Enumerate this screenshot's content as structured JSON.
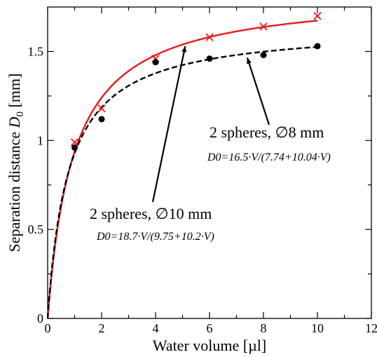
{
  "chart_data": {
    "type": "scatter",
    "title": "",
    "xlabel": "Water volume [µl]",
    "ylabel_main": "Separation distance ",
    "ylabel_sym": "D",
    "ylabel_sub": "0",
    "ylabel_unit": " [mm]",
    "xlim": [
      0,
      12
    ],
    "ylim": [
      0,
      1.75
    ],
    "xticks": [
      0,
      2,
      4,
      6,
      8,
      10,
      12
    ],
    "yticks": [
      0,
      0.5,
      1,
      1.5
    ],
    "xtick_labels": [
      "0",
      "2",
      "4",
      "6",
      "8",
      "10",
      "12"
    ],
    "ytick_labels": [
      "0",
      "0.5",
      "1",
      "1.5"
    ],
    "grid": false,
    "series": [
      {
        "marker": "x",
        "color": "#e8191c",
        "x": [
          1,
          2,
          4,
          6,
          8,
          10
        ],
        "y": [
          0.99,
          1.18,
          1.46,
          1.58,
          1.64,
          1.7
        ],
        "fit": {
          "a": 18.7,
          "b": 9.75,
          "c": 10.2,
          "style": "solid"
        }
      },
      {
        "marker": "circle",
        "color": "#000000",
        "x": [
          1,
          2,
          4,
          6,
          8,
          10
        ],
        "y": [
          0.96,
          1.12,
          1.44,
          1.46,
          1.48,
          1.53
        ],
        "fit": {
          "a": 16.5,
          "b": 7.74,
          "c": 10.04,
          "style": "dashed"
        }
      }
    ],
    "annotations": [
      {
        "title": "2 spheres, ∅10 mm",
        "formula": "D0=18.7·V/(9.75+10.2·V)",
        "arrow_to": {
          "x": 5.1,
          "y": 1.53
        }
      },
      {
        "title": "2 spheres, ∅8 mm",
        "formula": "D0=16.5·V/(7.74+10.04·V)",
        "arrow_to": {
          "x": 7.4,
          "y": 1.465
        }
      }
    ]
  }
}
